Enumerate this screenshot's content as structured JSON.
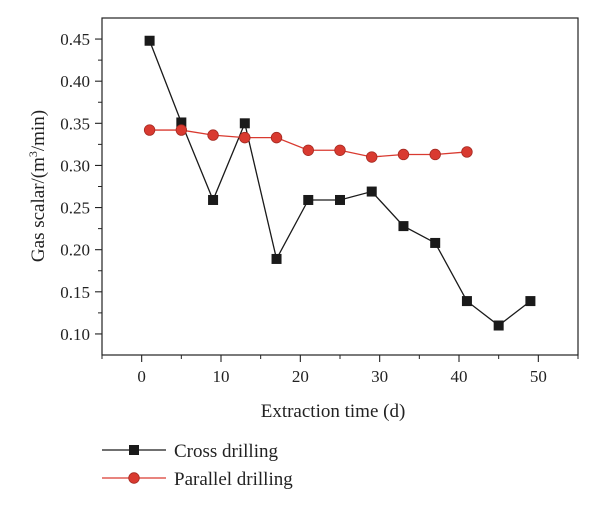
{
  "chart_data": {
    "type": "line",
    "title": "",
    "xlabel": "Extraction time (d)",
    "ylabel_prefix": "Gas scalar/(m",
    "ylabel_sup": "3",
    "ylabel_suffix": "/min)",
    "xlim": [
      -5,
      55
    ],
    "ylim": [
      0.075,
      0.475
    ],
    "xticks": [
      0,
      10,
      20,
      30,
      40,
      50
    ],
    "yticks": [
      0.1,
      0.15,
      0.2,
      0.25,
      0.3,
      0.35,
      0.4,
      0.45
    ],
    "xtick_labels": [
      "0",
      "10",
      "20",
      "30",
      "40",
      "50"
    ],
    "ytick_labels": [
      "0.10",
      "0.15",
      "0.20",
      "0.25",
      "0.30",
      "0.35",
      "0.40",
      "0.45"
    ],
    "legend_position": "bottom-left, below plot",
    "series": [
      {
        "name": "Cross drilling",
        "color": "#1a1a1a",
        "marker": "square",
        "x": [
          1,
          5,
          9,
          13,
          17,
          21,
          25,
          29,
          33,
          37,
          41,
          45,
          49
        ],
        "y": [
          0.448,
          0.351,
          0.259,
          0.35,
          0.189,
          0.259,
          0.259,
          0.269,
          0.228,
          0.208,
          0.139,
          0.11,
          0.139
        ]
      },
      {
        "name": "Parallel drilling",
        "color": "#d93a30",
        "marker": "circle",
        "x": [
          1,
          5,
          9,
          13,
          17,
          21,
          25,
          29,
          33,
          37,
          41
        ],
        "y": [
          0.342,
          0.342,
          0.336,
          0.333,
          0.333,
          0.318,
          0.318,
          0.31,
          0.313,
          0.313,
          0.316
        ]
      }
    ]
  }
}
